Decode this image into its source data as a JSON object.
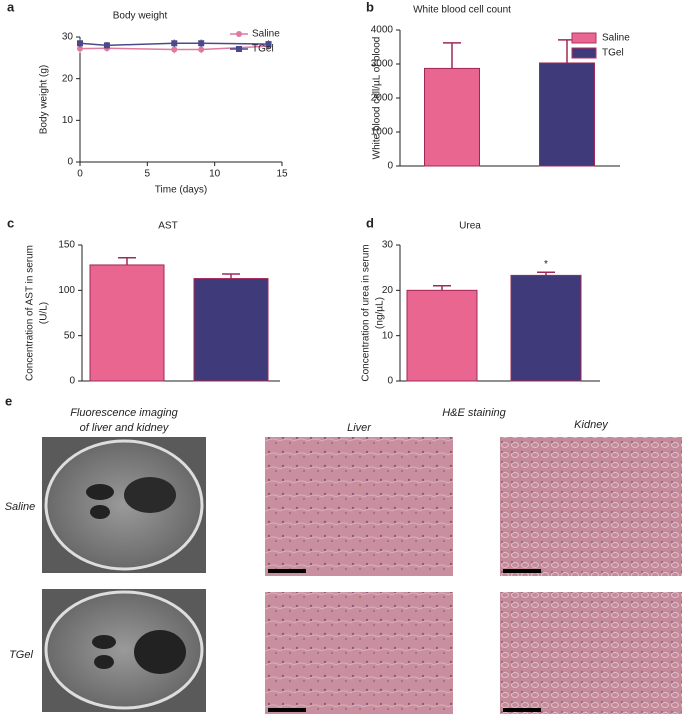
{
  "chart_data": [
    {
      "type": "line",
      "panel_label": "a",
      "title": "Body weight",
      "xlabel": "Time (days)",
      "ylabel": "Body weight (g)",
      "x": [
        0,
        2,
        7,
        9,
        14
      ],
      "xlim": [
        0,
        15
      ],
      "xticks": [
        0,
        5,
        10,
        15
      ],
      "ylim": [
        0,
        30
      ],
      "yticks": [
        0,
        10,
        20,
        30
      ],
      "legend": "top-right",
      "series": [
        {
          "name": "Saline",
          "color": "#e07aa0",
          "marker": "circle",
          "values": [
            27.2,
            27.3,
            27,
            27,
            27.8
          ],
          "errors": [
            1,
            0.8,
            0.9,
            0.9,
            0.8
          ]
        },
        {
          "name": "TGel",
          "color": "#4a4a8a",
          "marker": "square",
          "values": [
            28.5,
            28,
            28.5,
            28.5,
            28.3
          ],
          "errors": [
            1,
            0.8,
            0.9,
            0.9,
            0.9
          ]
        }
      ]
    },
    {
      "type": "bar",
      "panel_label": "b",
      "title": "White blood cell count",
      "ylabel": "White blood cell/µL of blood",
      "categories": [
        null
      ],
      "ylim": [
        0,
        4000
      ],
      "yticks": [
        0,
        1000,
        2000,
        3000,
        4000
      ],
      "legend": "top-right",
      "series": [
        {
          "name": "Saline",
          "color": "#e8668f",
          "values": [
            2870
          ],
          "errors": [
            750
          ]
        },
        {
          "name": "TGel",
          "color": "#3f3a7a",
          "values": [
            3030
          ],
          "errors": [
            680
          ]
        }
      ]
    },
    {
      "type": "bar",
      "panel_label": "c",
      "title": "AST",
      "ylabel": [
        "Concentration of AST in serum",
        "(U/L)"
      ],
      "categories": [
        null,
        null
      ],
      "values": [
        128,
        113
      ],
      "errors": [
        8,
        5
      ],
      "colors": [
        "#e8668f",
        "#3f3a7a"
      ],
      "ylim": [
        0,
        150
      ],
      "yticks": [
        0,
        50,
        100,
        150
      ]
    },
    {
      "type": "bar",
      "panel_label": "d",
      "title": "Urea",
      "ylabel": [
        "Concentration of urea in serum",
        "(ng/µL)"
      ],
      "categories": [
        null,
        null
      ],
      "values": [
        20,
        23.3
      ],
      "errors": [
        1,
        0.7
      ],
      "colors": [
        "#e8668f",
        "#3f3a7a"
      ],
      "ylim": [
        0,
        30
      ],
      "yticks": [
        0,
        10,
        20,
        30
      ],
      "annotation": "*"
    }
  ],
  "panel_e": {
    "panel_label": "e",
    "imaging_title": [
      "Fluorescence imaging",
      "of liver and kidney"
    ],
    "staining_title": "H&E staining",
    "columns": [
      "Liver",
      "Kidney"
    ],
    "rows": [
      "Saline",
      "TGel"
    ]
  }
}
